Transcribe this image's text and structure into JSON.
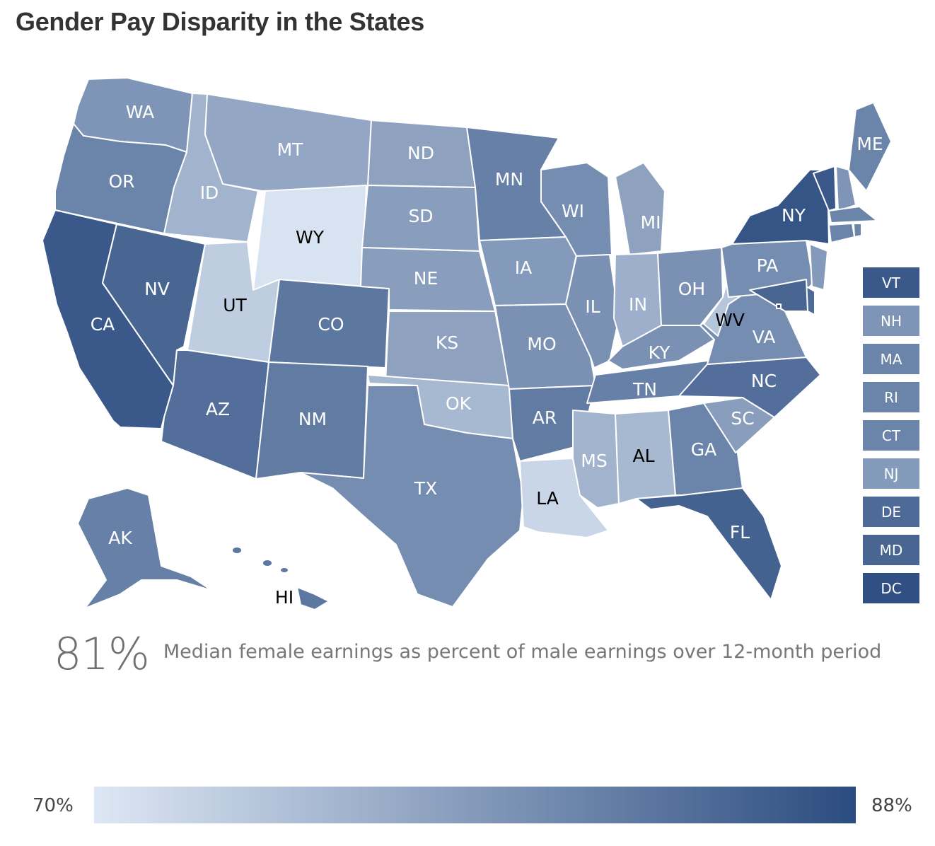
{
  "title": "Gender Pay Disparity in the States",
  "summary": {
    "value": "81%",
    "description": "Median female earnings as percent of male earnings over 12-month period"
  },
  "legend": {
    "min_label": "70%",
    "max_label": "88%",
    "min_value": 70,
    "max_value": 88,
    "min_color": "#dde7f4",
    "max_color": "#2b4c80"
  },
  "chart_data": {
    "type": "choropleth",
    "title": "Gender Pay Disparity in the States",
    "metric": "Median female earnings as percent of male earnings over 12-month period",
    "range": [
      70,
      88
    ],
    "national_value": 81,
    "states": [
      {
        "abbr": "WA",
        "value": 79.5
      },
      {
        "abbr": "OR",
        "value": 81.5
      },
      {
        "abbr": "CA",
        "value": 86.5
      },
      {
        "abbr": "NV",
        "value": 85
      },
      {
        "abbr": "ID",
        "value": 76
      },
      {
        "abbr": "MT",
        "value": 77.5
      },
      {
        "abbr": "WY",
        "value": 70.5
      },
      {
        "abbr": "UT",
        "value": 73
      },
      {
        "abbr": "CO",
        "value": 83
      },
      {
        "abbr": "AZ",
        "value": 84
      },
      {
        "abbr": "NM",
        "value": 82.5
      },
      {
        "abbr": "ND",
        "value": 78
      },
      {
        "abbr": "SD",
        "value": 78.5
      },
      {
        "abbr": "NE",
        "value": 78.5
      },
      {
        "abbr": "KS",
        "value": 78
      },
      {
        "abbr": "OK",
        "value": 75.5
      },
      {
        "abbr": "TX",
        "value": 80.5
      },
      {
        "abbr": "MN",
        "value": 82
      },
      {
        "abbr": "IA",
        "value": 79
      },
      {
        "abbr": "MO",
        "value": 80
      },
      {
        "abbr": "AR",
        "value": 82.5
      },
      {
        "abbr": "LA",
        "value": 72
      },
      {
        "abbr": "WI",
        "value": 80.5
      },
      {
        "abbr": "IL",
        "value": 80
      },
      {
        "abbr": "MI",
        "value": 78
      },
      {
        "abbr": "IN",
        "value": 76.5
      },
      {
        "abbr": "OH",
        "value": 80
      },
      {
        "abbr": "KY",
        "value": 80
      },
      {
        "abbr": "TN",
        "value": 82
      },
      {
        "abbr": "MS",
        "value": 76
      },
      {
        "abbr": "AL",
        "value": 75.5
      },
      {
        "abbr": "GA",
        "value": 81.5
      },
      {
        "abbr": "FL",
        "value": 85.5
      },
      {
        "abbr": "SC",
        "value": 78.5
      },
      {
        "abbr": "NC",
        "value": 84
      },
      {
        "abbr": "VA",
        "value": 80.5
      },
      {
        "abbr": "WV",
        "value": 74
      },
      {
        "abbr": "PA",
        "value": 80.5
      },
      {
        "abbr": "NY",
        "value": 87
      },
      {
        "abbr": "ME",
        "value": 81.5
      },
      {
        "abbr": "AK",
        "value": 82
      },
      {
        "abbr": "HI",
        "value": 83
      },
      {
        "abbr": "VT",
        "value": 86.5
      },
      {
        "abbr": "NH",
        "value": 79.5
      },
      {
        "abbr": "MA",
        "value": 81.5
      },
      {
        "abbr": "RI",
        "value": 81.5
      },
      {
        "abbr": "CT",
        "value": 81.5
      },
      {
        "abbr": "NJ",
        "value": 79
      },
      {
        "abbr": "DE",
        "value": 84.5
      },
      {
        "abbr": "MD",
        "value": 85
      },
      {
        "abbr": "DC",
        "value": 87.5
      }
    ],
    "small_state_boxes": [
      "VT",
      "NH",
      "MA",
      "RI",
      "CT",
      "NJ",
      "DE",
      "MD",
      "DC"
    ],
    "dark_label_states": [
      "WY",
      "UT",
      "LA",
      "AL",
      "WV",
      "HI"
    ]
  }
}
